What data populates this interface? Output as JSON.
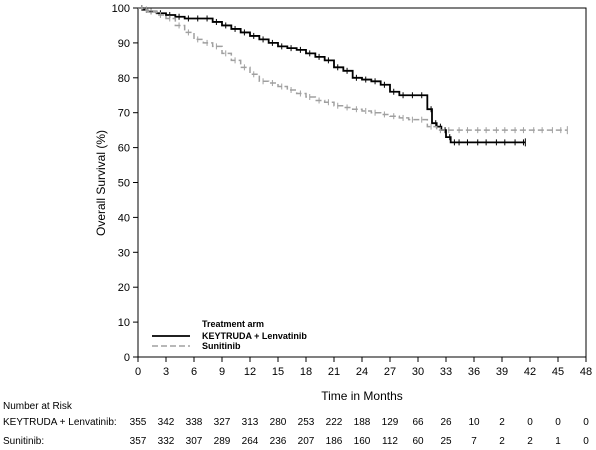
{
  "chart_data": {
    "type": "line",
    "xlabel": "Time in Months",
    "ylabel": "Overall Survival (%)",
    "xlim": [
      0,
      48
    ],
    "ylim": [
      0,
      100
    ],
    "xticks": [
      0,
      3,
      6,
      9,
      12,
      15,
      18,
      21,
      24,
      27,
      30,
      33,
      36,
      39,
      42,
      45,
      48
    ],
    "yticks": [
      0,
      10,
      20,
      30,
      40,
      50,
      60,
      70,
      80,
      90,
      100
    ],
    "grid": false,
    "legend": {
      "title": "Treatment arm",
      "placement": "bottom-left"
    },
    "series": [
      {
        "name": "KEYTRUDA + Lenvatinib",
        "color": "#000000",
        "style": "solid",
        "x": [
          0,
          0.5,
          1,
          2,
          3,
          4,
          5,
          6,
          7,
          8,
          9,
          10,
          11,
          12,
          13,
          14,
          15,
          16,
          17,
          18,
          19,
          20,
          21,
          22,
          23,
          24,
          25,
          26,
          27,
          28,
          29,
          30,
          31,
          31.5,
          32,
          32.5,
          33,
          33.5,
          34,
          36,
          38,
          40,
          41.5
        ],
        "y": [
          100,
          99.5,
          99,
          98.5,
          98,
          97.5,
          97,
          97,
          97,
          96,
          95,
          94,
          93,
          92,
          91,
          90,
          89,
          88.5,
          88,
          87,
          86,
          85,
          83,
          82,
          80,
          79.5,
          79,
          78,
          76,
          75,
          75,
          75,
          71,
          67,
          66,
          65,
          63,
          61.5,
          61.5,
          61.5,
          61.5,
          61.5,
          61.5
        ]
      },
      {
        "name": "Sunitinib",
        "color": "#a0a0a0",
        "style": "dashed",
        "x": [
          0,
          0.5,
          1,
          2,
          3,
          4,
          5,
          6,
          7,
          8,
          9,
          10,
          11,
          12,
          13,
          14,
          15,
          16,
          17,
          18,
          19,
          20,
          21,
          22,
          23,
          24,
          25,
          26,
          27,
          28,
          29,
          30,
          31,
          32,
          34,
          36,
          38,
          40,
          42,
          44,
          46
        ],
        "y": [
          100,
          99.5,
          99,
          98,
          97,
          95,
          93,
          91,
          90,
          89,
          87,
          85,
          83,
          81,
          79,
          78.5,
          77.5,
          76.5,
          75.5,
          74.5,
          73.5,
          73,
          72,
          71.5,
          71,
          70.5,
          70,
          69.5,
          69,
          68.5,
          68,
          68,
          66,
          65,
          65,
          65,
          65,
          65,
          65,
          65,
          65
        ]
      }
    ],
    "risk_table": {
      "header": "Number at Risk",
      "rows": [
        {
          "label": "KEYTRUDA + Lenvatinib:",
          "values": [
            "355",
            "342",
            "338",
            "327",
            "313",
            "280",
            "253",
            "222",
            "188",
            "129",
            "66",
            "26",
            "10",
            "2",
            "0",
            "0",
            "0"
          ]
        },
        {
          "label": "Sunitinib:",
          "values": [
            "357",
            "332",
            "307",
            "289",
            "264",
            "236",
            "207",
            "186",
            "160",
            "112",
            "60",
            "25",
            "7",
            "2",
            "2",
            "1",
            "0"
          ]
        }
      ]
    }
  }
}
